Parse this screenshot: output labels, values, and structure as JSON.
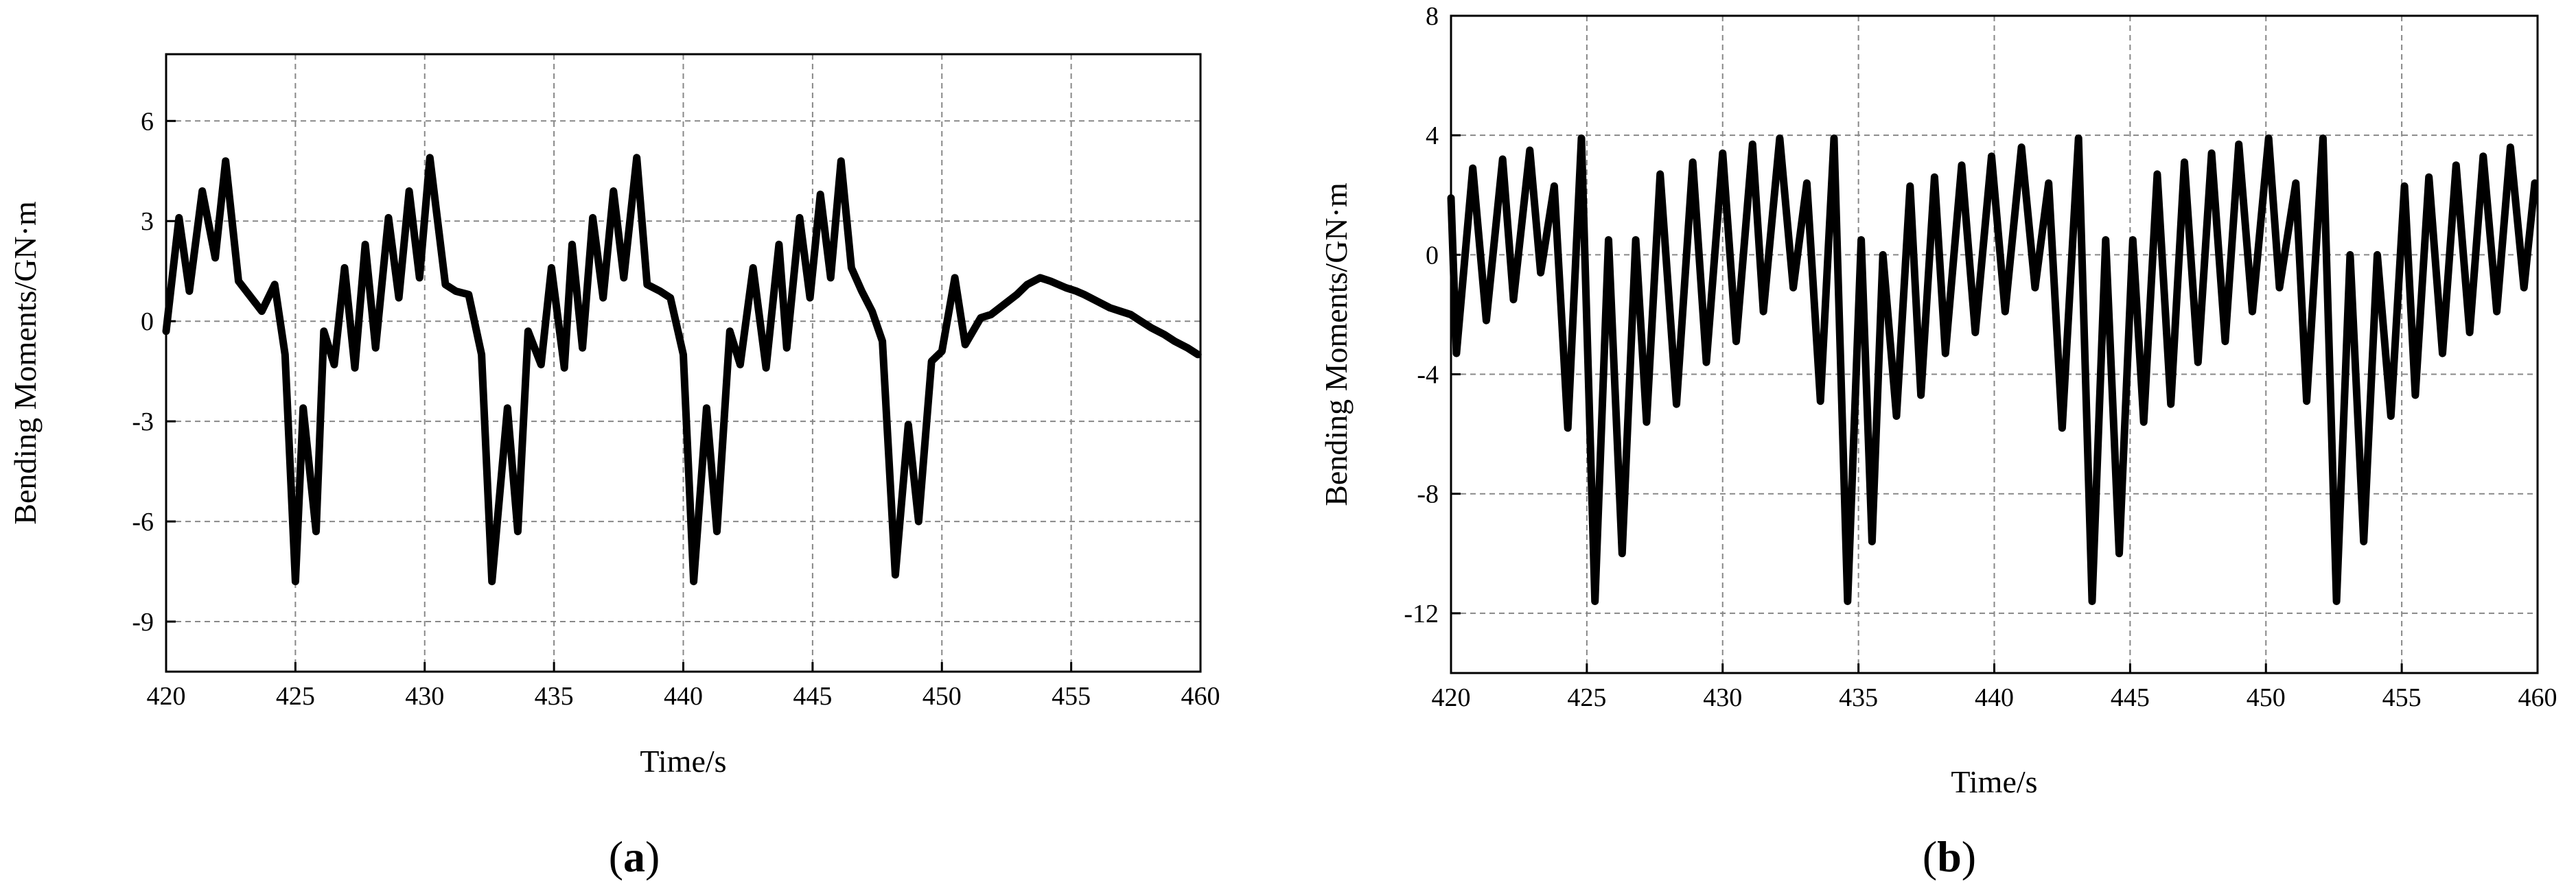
{
  "chart_data": [
    {
      "type": "line",
      "panel_label_open": "(",
      "panel_label_letter": "a",
      "panel_label_close": ")",
      "title": "",
      "xlabel": "Time/s",
      "ylabel": "Bending Moments/GN·m",
      "xlim": [
        420,
        460
      ],
      "ylim": [
        -10.5,
        8
      ],
      "xticks": [
        420,
        425,
        430,
        435,
        440,
        445,
        450,
        455,
        460
      ],
      "yticks": [
        6,
        3,
        0,
        -3,
        -6,
        -9
      ],
      "xtick_labels": [
        "420",
        "425",
        "430",
        "435",
        "440",
        "445",
        "450",
        "455",
        "460"
      ],
      "ytick_labels": [
        "6",
        "3",
        "0",
        "-3",
        "-6",
        "-9"
      ],
      "grid": true,
      "line_color": "#000000",
      "series": [
        {
          "x": [
            420.0,
            420.5,
            420.9,
            421.4,
            421.9,
            422.3,
            422.8,
            423.3,
            423.7,
            424.2,
            424.6,
            425.0,
            425.3,
            425.8,
            426.1,
            426.5,
            426.9,
            427.3,
            427.7,
            428.1,
            428.6,
            429.0,
            429.4,
            429.8,
            430.2,
            430.8,
            431.2,
            431.7,
            432.2,
            432.6,
            433.2,
            433.6,
            434.0,
            434.5,
            434.9,
            435.4,
            435.7,
            436.1,
            436.5,
            436.9,
            437.3,
            437.7,
            438.2,
            438.6,
            439.1,
            439.5,
            440.0,
            440.4,
            440.9,
            441.3,
            441.8,
            442.2,
            442.7,
            443.2,
            443.7,
            444.0,
            444.5,
            444.9,
            445.3,
            445.7,
            446.1,
            446.5,
            446.9,
            447.3,
            447.7,
            448.2,
            448.7,
            449.1,
            449.6,
            450.0,
            450.5,
            450.9,
            451.5,
            451.9,
            452.4,
            452.9,
            453.3,
            453.8,
            454.2,
            454.8,
            455.2,
            455.5,
            456.0,
            456.5,
            456.9,
            457.3,
            457.7,
            458.1,
            458.6,
            459.0,
            459.5,
            459.9
          ],
          "y": [
            -0.3,
            3.1,
            0.9,
            3.9,
            1.9,
            4.8,
            1.2,
            0.7,
            0.3,
            1.1,
            -1.0,
            -7.8,
            -2.6,
            -6.3,
            -0.3,
            -1.3,
            1.6,
            -1.4,
            2.3,
            -0.8,
            3.1,
            0.7,
            3.9,
            1.3,
            4.9,
            1.1,
            0.9,
            0.8,
            -1.0,
            -7.8,
            -2.6,
            -6.3,
            -0.3,
            -1.3,
            1.6,
            -1.4,
            2.3,
            -0.8,
            3.1,
            0.7,
            3.9,
            1.3,
            4.9,
            1.1,
            0.9,
            0.7,
            -1.0,
            -7.8,
            -2.6,
            -6.3,
            -0.3,
            -1.3,
            1.6,
            -1.4,
            2.3,
            -0.8,
            3.1,
            0.7,
            3.8,
            1.3,
            4.8,
            1.6,
            0.9,
            0.3,
            -0.6,
            -7.6,
            -3.1,
            -6.0,
            -1.2,
            -0.9,
            1.3,
            -0.7,
            0.1,
            0.2,
            0.5,
            0.8,
            1.1,
            1.3,
            1.2,
            1.0,
            0.9,
            0.8,
            0.6,
            0.4,
            0.3,
            0.2,
            0.0,
            -0.2,
            -0.4,
            -0.6,
            -0.8,
            -1.0
          ]
        }
      ]
    },
    {
      "type": "line",
      "panel_label_open": "(",
      "panel_label_letter": "b",
      "panel_label_close": ")",
      "title": "",
      "xlabel": "Time/s",
      "ylabel": "Bending Moments/GN·m",
      "xlim": [
        420,
        460
      ],
      "ylim": [
        -14,
        8
      ],
      "xticks": [
        420,
        425,
        430,
        435,
        440,
        445,
        450,
        455,
        460
      ],
      "yticks": [
        8,
        4,
        0,
        -4,
        -8,
        -12
      ],
      "xtick_labels": [
        "420",
        "425",
        "430",
        "435",
        "440",
        "445",
        "450",
        "455",
        "460"
      ],
      "ytick_labels": [
        "8",
        "4",
        "0",
        "-4",
        "-8",
        "-12"
      ],
      "grid": true,
      "line_color": "#000000",
      "series": [
        {
          "x": [
            420.0,
            420.2,
            420.8,
            421.3,
            421.9,
            422.3,
            422.9,
            423.3,
            423.8,
            424.3,
            424.8,
            425.3,
            425.8,
            426.3,
            426.8,
            427.2,
            427.7,
            428.3,
            428.9,
            429.4,
            430.0,
            430.5,
            431.1,
            431.5,
            432.1,
            432.6,
            433.1,
            433.6,
            434.1,
            434.6,
            435.1,
            435.5,
            435.9,
            436.4,
            436.9,
            437.3,
            437.8,
            438.2,
            438.8,
            439.3,
            439.9,
            440.4,
            441.0,
            441.5,
            442.0,
            442.5,
            443.1,
            443.6,
            444.1,
            444.6,
            445.1,
            445.5,
            446.0,
            446.5,
            447.0,
            447.5,
            448.0,
            448.5,
            449.0,
            449.5,
            450.1,
            450.5,
            451.1,
            451.5,
            452.1,
            452.6,
            453.1,
            453.6,
            454.1,
            454.6,
            455.1,
            455.5,
            456.0,
            456.5,
            457.0,
            457.5,
            458.0,
            458.5,
            459.0,
            459.5,
            459.9
          ],
          "y": [
            1.9,
            -3.3,
            2.9,
            -2.2,
            3.2,
            -1.5,
            3.5,
            -0.6,
            2.3,
            -5.8,
            3.9,
            -11.6,
            0.5,
            -10.0,
            0.5,
            -5.6,
            2.7,
            -5.0,
            3.1,
            -3.6,
            3.4,
            -2.9,
            3.7,
            -1.9,
            3.9,
            -1.1,
            2.4,
            -4.9,
            3.9,
            -11.6,
            0.5,
            -9.6,
            0.0,
            -5.4,
            2.3,
            -4.7,
            2.6,
            -3.3,
            3.0,
            -2.6,
            3.3,
            -1.9,
            3.6,
            -1.1,
            2.4,
            -5.8,
            3.9,
            -11.6,
            0.5,
            -10.0,
            0.5,
            -5.6,
            2.7,
            -5.0,
            3.1,
            -3.6,
            3.4,
            -2.9,
            3.7,
            -1.9,
            3.9,
            -1.1,
            2.4,
            -4.9,
            3.9,
            -11.6,
            0.0,
            -9.6,
            0.0,
            -5.4,
            2.3,
            -4.7,
            2.6,
            -3.3,
            3.0,
            -2.6,
            3.3,
            -1.9,
            3.6,
            -1.1,
            2.4
          ]
        }
      ]
    }
  ]
}
